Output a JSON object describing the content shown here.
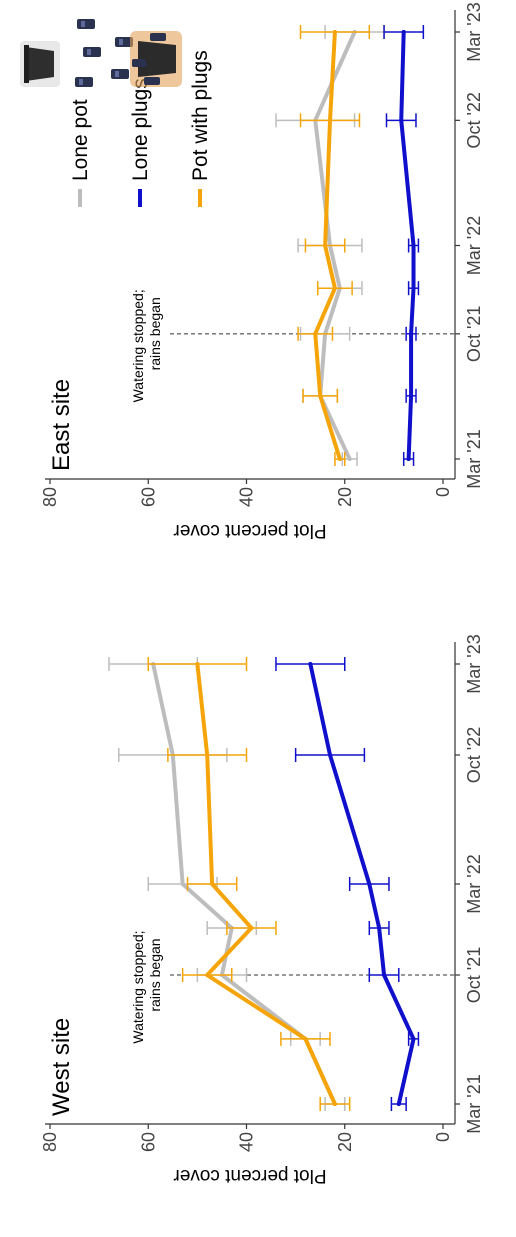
{
  "chart_data": [
    {
      "type": "line",
      "title": "West site",
      "ylabel": "Plot percent cover",
      "xlabel": "",
      "ylim": [
        0,
        80
      ],
      "yticks": [
        "0",
        "20",
        "40",
        "60",
        "80"
      ],
      "xticks": [
        "Mar '21",
        "Oct '21",
        "Mar '22",
        "Oct '22",
        "Mar '23"
      ],
      "xtick_dates": [
        "2021-03-15",
        "2021-10-15",
        "2022-03-15",
        "2022-10-15",
        "2023-03-15"
      ],
      "grid": false,
      "annotation": {
        "lines": [
          "Watering stopped;",
          "rains began"
        ],
        "x": "2021-10-15"
      },
      "series": [
        {
          "name": "Lone pot",
          "color": "#bdbdbd",
          "x": [
            "2021-03-15",
            "2021-07-01",
            "2021-10-15",
            "2022-01-01",
            "2022-03-15",
            "2022-10-15",
            "2023-03-15"
          ],
          "values": [
            22,
            28,
            45,
            43,
            53,
            55,
            59
          ],
          "err": [
            2,
            3,
            5,
            5,
            7,
            11,
            9
          ]
        },
        {
          "name": "Lone plugs",
          "color": "#1010cc",
          "x": [
            "2021-03-15",
            "2021-07-01",
            "2021-10-15",
            "2022-01-01",
            "2022-03-15",
            "2022-10-15",
            "2023-03-15"
          ],
          "values": [
            9,
            6,
            12,
            13,
            15,
            23,
            27
          ],
          "err": [
            1.5,
            1,
            3,
            2,
            4,
            7,
            7
          ]
        },
        {
          "name": "Pot with plugs",
          "color": "#f5a50a",
          "x": [
            "2021-03-15",
            "2021-07-01",
            "2021-10-15",
            "2022-01-01",
            "2022-03-15",
            "2022-10-15",
            "2023-03-15"
          ],
          "values": [
            22,
            28,
            48,
            39,
            47,
            48,
            50
          ],
          "err": [
            3,
            5,
            5,
            5,
            5,
            8,
            10
          ]
        }
      ]
    },
    {
      "type": "line",
      "title": "East site",
      "ylabel": "Plot percent cover",
      "xlabel": "",
      "ylim": [
        0,
        80
      ],
      "yticks": [
        "0",
        "20",
        "40",
        "60",
        "80"
      ],
      "xticks": [
        "Mar '21",
        "Oct '21",
        "Mar '22",
        "Oct '22",
        "Mar '23"
      ],
      "xtick_dates": [
        "2021-03-15",
        "2021-10-15",
        "2022-03-15",
        "2022-10-15",
        "2023-03-15"
      ],
      "grid": false,
      "annotation": {
        "lines": [
          "Watering stopped;",
          "rains began"
        ],
        "x": "2021-10-15"
      },
      "series": [
        {
          "name": "Lone pot",
          "color": "#bdbdbd",
          "x": [
            "2021-03-15",
            "2021-07-01",
            "2021-10-15",
            "2022-01-01",
            "2022-03-15",
            "2022-10-15",
            "2023-03-15"
          ],
          "values": [
            19,
            25,
            24,
            21,
            23,
            26,
            18
          ],
          "err": [
            1.5,
            3.5,
            5,
            4.5,
            6.5,
            8,
            6
          ]
        },
        {
          "name": "Lone plugs",
          "color": "#1010cc",
          "x": [
            "2021-03-15",
            "2021-07-01",
            "2021-10-15",
            "2022-01-01",
            "2022-03-15",
            "2022-10-15",
            "2023-03-15"
          ],
          "values": [
            7,
            6.5,
            6.5,
            6,
            6,
            8.5,
            8
          ],
          "err": [
            1,
            1,
            1,
            1,
            1,
            3,
            4
          ]
        },
        {
          "name": "Pot with plugs",
          "color": "#f5a50a",
          "x": [
            "2021-03-15",
            "2021-07-01",
            "2021-10-15",
            "2022-01-01",
            "2022-03-15",
            "2022-10-15",
            "2023-03-15"
          ],
          "values": [
            21,
            25,
            26,
            22,
            24,
            23,
            22
          ],
          "err": [
            1,
            3.5,
            3.5,
            3.5,
            4,
            6,
            7
          ]
        }
      ]
    }
  ],
  "legend": {
    "placement": "top-right",
    "items": [
      {
        "label": "Lone pot",
        "color": "#bdbdbd",
        "icon": "pot-icon"
      },
      {
        "label": "Lone plugs",
        "color": "#1010cc",
        "icon": "plugs-icon"
      },
      {
        "label": "Pot with plugs",
        "color": "#f5a50a",
        "icon": "pot-with-plugs-icon"
      }
    ]
  }
}
